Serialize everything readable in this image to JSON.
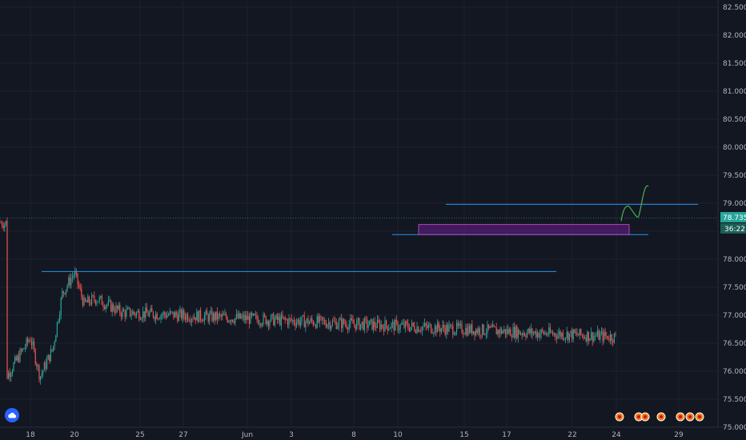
{
  "colors": {
    "background": "#131722",
    "grid": "#1e222d",
    "up": "#26a69a",
    "down": "#ef5350",
    "level_line": "#2196f3",
    "box_fill": "#7b1fa2",
    "box_stroke": "#ab47bc",
    "projection": "#4caf50",
    "last_price": "#26a69a",
    "axis_text": "#b2b5be"
  },
  "chart_data": {
    "type": "candlestick",
    "symbol_logo_icon": "tradingview-cloud-icon",
    "ylim": [
      75.0,
      82.6
    ],
    "y_ticks": [
      "82.500",
      "82.000",
      "81.500",
      "81.000",
      "80.500",
      "80.000",
      "79.500",
      "79.000",
      "78.500",
      "78.000",
      "77.500",
      "77.000",
      "76.500",
      "76.000",
      "75.500",
      "75.000"
    ],
    "x_ticks": [
      "18",
      "20",
      "25",
      "27",
      "Jun",
      "3",
      "8",
      "10",
      "15",
      "17",
      "22",
      "24",
      "29"
    ],
    "last_price": "78.735",
    "countdown": "36:22",
    "price_path": [
      {
        "x": "17",
        "y": 75.9
      },
      {
        "x": "18",
        "y": 76.6
      },
      {
        "x": "18",
        "y": 75.9
      },
      {
        "x": "19",
        "y": 76.4
      },
      {
        "x": "19",
        "y": 77.4
      },
      {
        "x": "20",
        "y": 77.75
      },
      {
        "x": "20",
        "y": 77.2
      },
      {
        "x": "21",
        "y": 77.3
      },
      {
        "x": "24",
        "y": 77.05
      },
      {
        "x": "25",
        "y": 76.6
      },
      {
        "x": "25",
        "y": 77.0
      },
      {
        "x": "26",
        "y": 77.1
      },
      {
        "x": "27",
        "y": 77.8
      },
      {
        "x": "27",
        "y": 78.3
      },
      {
        "x": "28",
        "y": 78.5
      },
      {
        "x": "28",
        "y": 78.15
      },
      {
        "x": "29",
        "y": 77.85
      },
      {
        "x": "Jun",
        "y": 78.35
      },
      {
        "x": "1",
        "y": 78.7
      },
      {
        "x": "2",
        "y": 79.6
      },
      {
        "x": "2",
        "y": 80.4
      },
      {
        "x": "3",
        "y": 80.5
      },
      {
        "x": "3",
        "y": 80.05
      },
      {
        "x": "4",
        "y": 80.75
      },
      {
        "x": "5",
        "y": 80.8
      },
      {
        "x": "7",
        "y": 81.0
      },
      {
        "x": "7",
        "y": 81.9
      },
      {
        "x": "8",
        "y": 81.6
      },
      {
        "x": "9",
        "y": 80.9
      },
      {
        "x": "9",
        "y": 80.5
      },
      {
        "x": "10",
        "y": 80.2
      },
      {
        "x": "10",
        "y": 79.5
      },
      {
        "x": "11",
        "y": 79.0
      },
      {
        "x": "12",
        "y": 78.05
      },
      {
        "x": "12",
        "y": 79.0
      },
      {
        "x": "14",
        "y": 78.7
      },
      {
        "x": "15",
        "y": 78.65
      },
      {
        "x": "15",
        "y": 78.5
      },
      {
        "x": "16",
        "y": 79.3
      },
      {
        "x": "17",
        "y": 79.35
      },
      {
        "x": "17",
        "y": 78.9
      },
      {
        "x": "18",
        "y": 79.0
      },
      {
        "x": "19",
        "y": 78.6
      },
      {
        "x": "21",
        "y": 78.65
      },
      {
        "x": "21",
        "y": 78.45
      },
      {
        "x": "22",
        "y": 78.9
      },
      {
        "x": "23",
        "y": 79.25
      },
      {
        "x": "24",
        "y": 78.65
      }
    ],
    "horizontal_levels": [
      {
        "from": "18",
        "to": "24",
        "y": 77.78
      },
      {
        "from": "12",
        "to": "26",
        "y": 78.98
      },
      {
        "from": "10",
        "to": "25",
        "y": 78.44
      }
    ],
    "support_zone": {
      "from": "11",
      "to": "24",
      "y_low": 78.44,
      "y_high": 78.62
    },
    "projection_path": [
      {
        "x": "24",
        "y": 78.68
      },
      {
        "x": "24",
        "y": 78.95
      },
      {
        "x": "25",
        "y": 78.75
      },
      {
        "x": "26",
        "y": 79.3
      }
    ]
  }
}
